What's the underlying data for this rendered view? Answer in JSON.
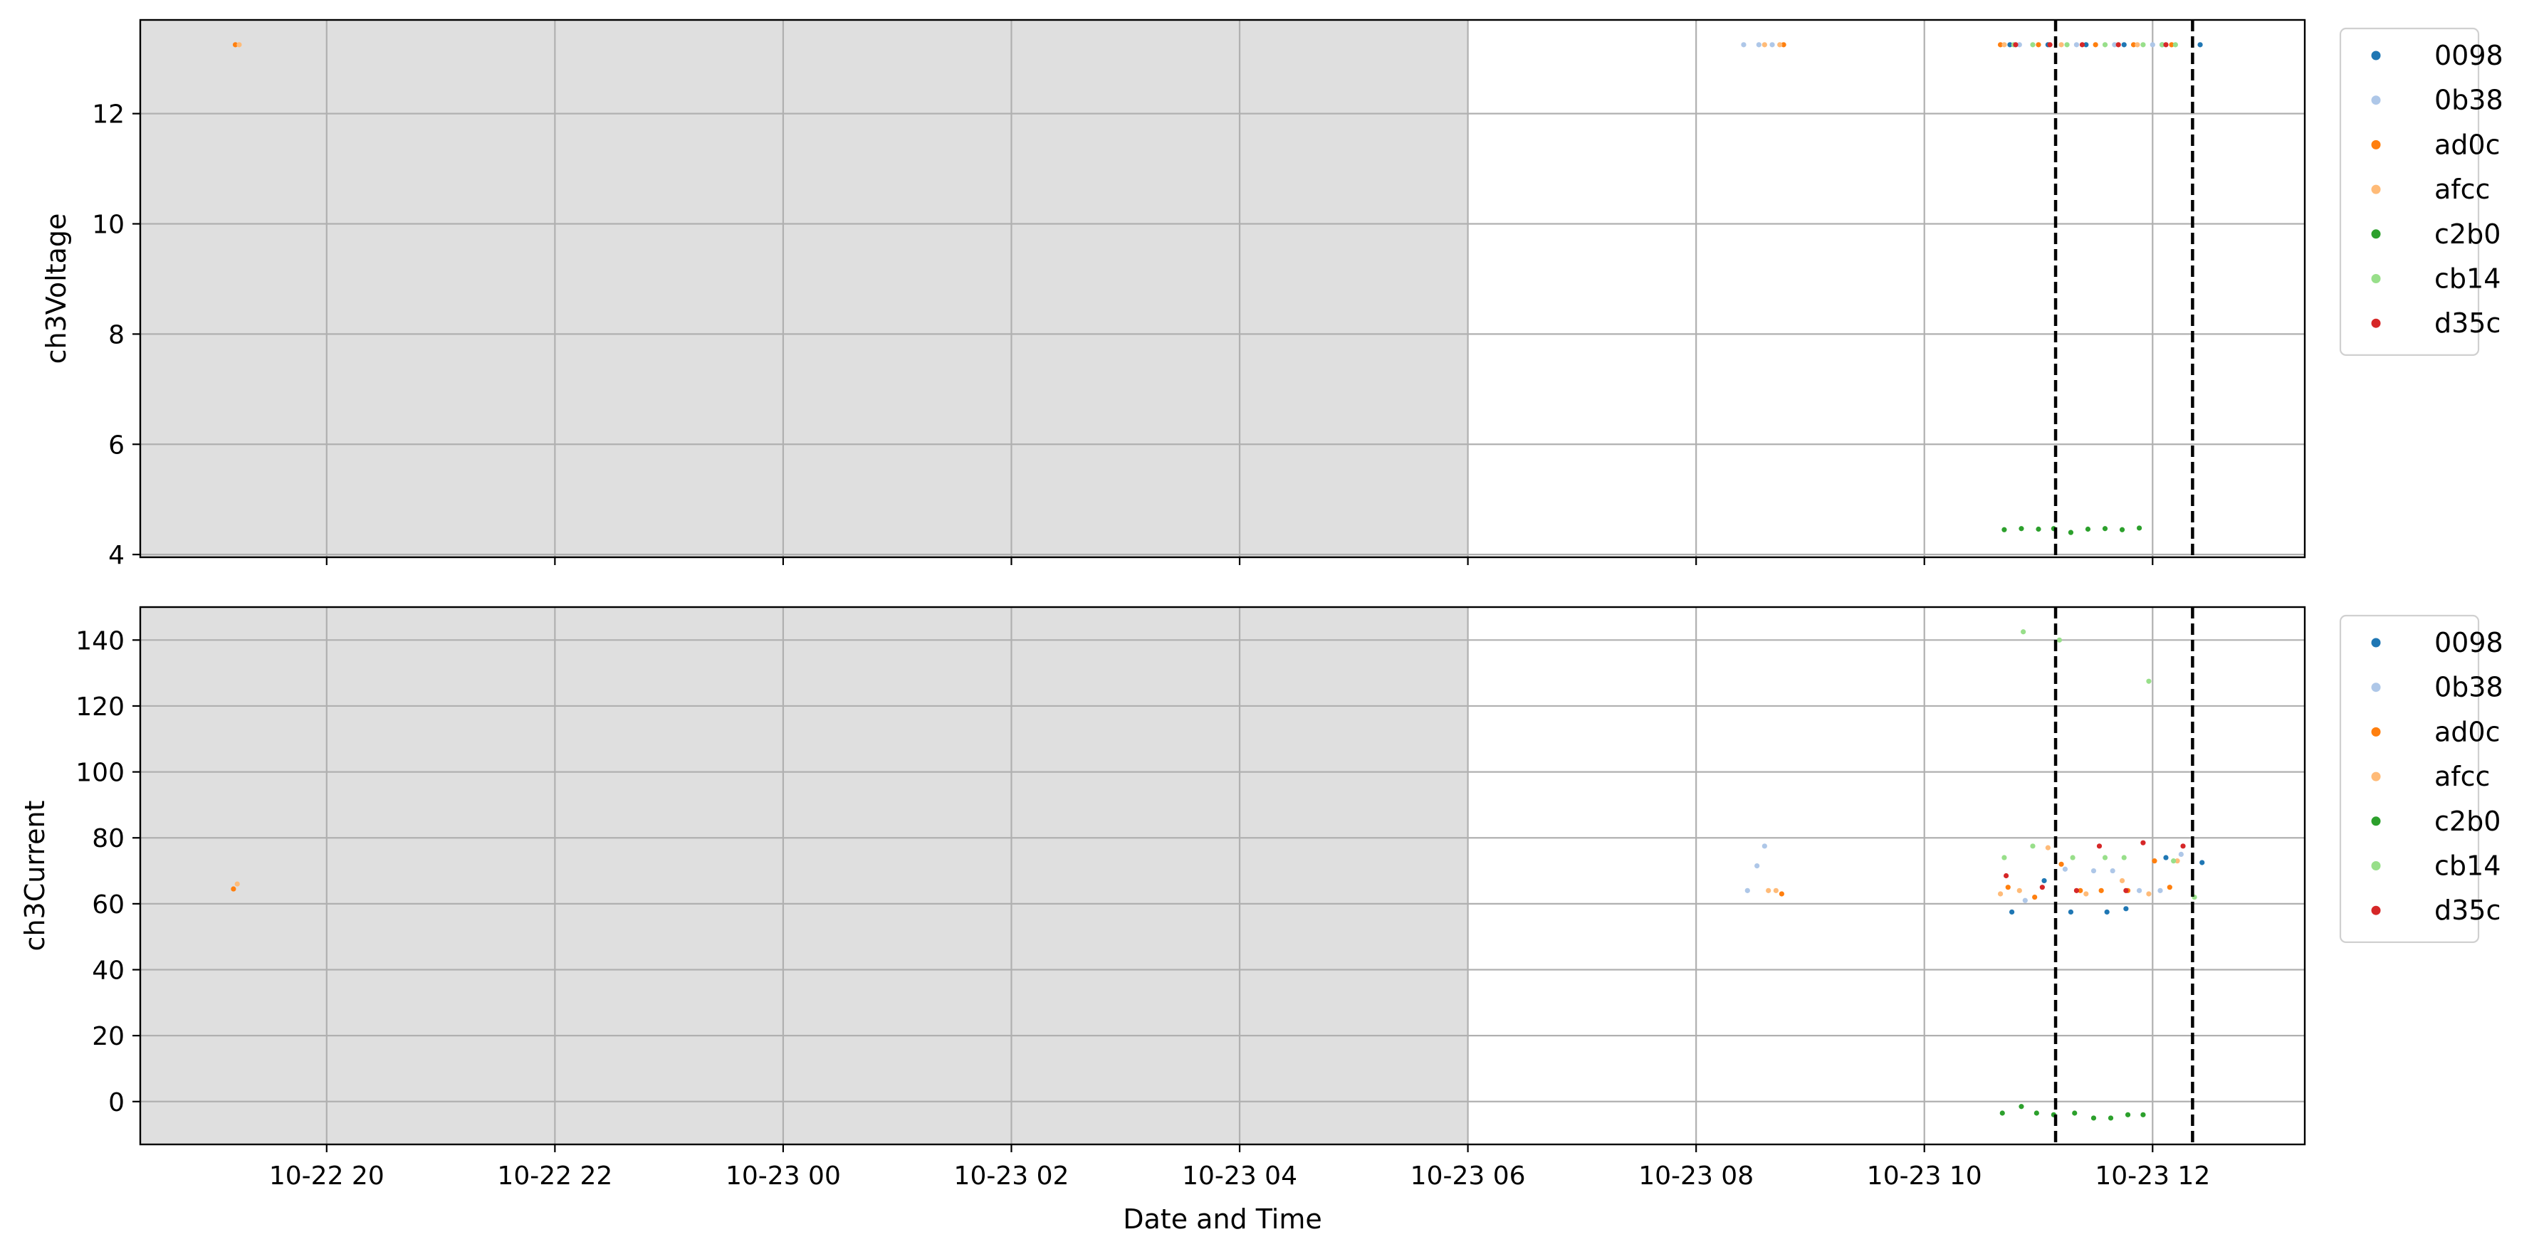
{
  "chart_data": {
    "type": "scatter",
    "x_unit": "datetime",
    "xlabel": "Date and Time",
    "x_ticks": [
      {
        "t": "2023-10-22T20:00",
        "label": "10-22 20"
      },
      {
        "t": "2023-10-22T22:00",
        "label": "10-22 22"
      },
      {
        "t": "2023-10-23T00:00",
        "label": "10-23 00"
      },
      {
        "t": "2023-10-23T02:00",
        "label": "10-23 02"
      },
      {
        "t": "2023-10-23T04:00",
        "label": "10-23 04"
      },
      {
        "t": "2023-10-23T06:00",
        "label": "10-23 06"
      },
      {
        "t": "2023-10-23T08:00",
        "label": "10-23 08"
      },
      {
        "t": "2023-10-23T10:00",
        "label": "10-23 10"
      },
      {
        "t": "2023-10-23T12:00",
        "label": "10-23 12"
      }
    ],
    "xlim": [
      "2023-10-22T18:22",
      "2023-10-23T13:20"
    ],
    "shaded_region": {
      "from": "2023-10-22T18:22",
      "to": "2023-10-23T06:00",
      "color": "#dfdfdf"
    },
    "vlines": [
      "2023-10-23T11:09",
      "2023-10-23T12:21"
    ],
    "grid": true,
    "legend_placement": "outside-right",
    "colors": {
      "0098": "#1f77b4",
      "0b38": "#aec7e8",
      "ad0c": "#ff7f0e",
      "afcc": "#ffbb78",
      "c2b0": "#2ca02c",
      "cb14": "#98df8a",
      "d35c": "#d62728"
    },
    "panels": [
      {
        "ylabel": "ch3Voltage",
        "ylim": [
          3.95,
          13.7
        ],
        "y_ticks": [
          4,
          6,
          8,
          10,
          12
        ],
        "legend": [
          "0098",
          "0b38",
          "ad0c",
          "afcc",
          "c2b0",
          "cb14",
          "d35c"
        ],
        "series": [
          {
            "name": "0098",
            "points": [
              [
                "2023-10-23T10:45",
                13.25
              ],
              [
                "2023-10-23T11:05",
                13.25
              ],
              [
                "2023-10-23T11:25",
                13.25
              ],
              [
                "2023-10-23T11:45",
                13.25
              ],
              [
                "2023-10-23T12:05",
                13.25
              ],
              [
                "2023-10-23T12:25",
                13.25
              ]
            ]
          },
          {
            "name": "0b38",
            "points": [
              [
                "2023-10-23T08:25",
                13.25
              ],
              [
                "2023-10-23T08:33",
                13.25
              ],
              [
                "2023-10-23T08:40",
                13.25
              ],
              [
                "2023-10-23T10:50",
                13.25
              ],
              [
                "2023-10-23T11:20",
                13.25
              ],
              [
                "2023-10-23T11:40",
                13.25
              ],
              [
                "2023-10-23T12:00",
                13.25
              ]
            ]
          },
          {
            "name": "ad0c",
            "points": [
              [
                "2023-10-22T19:12",
                13.25
              ],
              [
                "2023-10-23T08:46",
                13.25
              ],
              [
                "2023-10-23T10:40",
                13.25
              ],
              [
                "2023-10-23T11:00",
                13.25
              ],
              [
                "2023-10-23T11:30",
                13.25
              ],
              [
                "2023-10-23T11:50",
                13.25
              ],
              [
                "2023-10-23T12:10",
                13.25
              ]
            ]
          },
          {
            "name": "afcc",
            "points": [
              [
                "2023-10-22T19:14",
                13.25
              ],
              [
                "2023-10-23T08:36",
                13.25
              ],
              [
                "2023-10-23T08:44",
                13.25
              ],
              [
                "2023-10-23T10:42",
                13.25
              ],
              [
                "2023-10-23T11:12",
                13.25
              ],
              [
                "2023-10-23T11:52",
                13.25
              ]
            ]
          },
          {
            "name": "c2b0",
            "points": [
              [
                "2023-10-23T10:42",
                4.45
              ],
              [
                "2023-10-23T10:51",
                4.47
              ],
              [
                "2023-10-23T11:00",
                4.46
              ],
              [
                "2023-10-23T11:08",
                4.47
              ],
              [
                "2023-10-23T11:17",
                4.4
              ],
              [
                "2023-10-23T11:26",
                4.46
              ],
              [
                "2023-10-23T11:35",
                4.47
              ],
              [
                "2023-10-23T11:44",
                4.45
              ],
              [
                "2023-10-23T11:53",
                4.48
              ]
            ]
          },
          {
            "name": "cb14",
            "points": [
              [
                "2023-10-23T10:47",
                13.25
              ],
              [
                "2023-10-23T10:57",
                13.25
              ],
              [
                "2023-10-23T11:15",
                13.25
              ],
              [
                "2023-10-23T11:35",
                13.25
              ],
              [
                "2023-10-23T11:55",
                13.25
              ],
              [
                "2023-10-23T12:05",
                13.25
              ],
              [
                "2023-10-23T12:12",
                13.25
              ]
            ]
          },
          {
            "name": "d35c",
            "points": [
              [
                "2023-10-23T10:48",
                13.25
              ],
              [
                "2023-10-23T11:06",
                13.25
              ],
              [
                "2023-10-23T11:23",
                13.25
              ],
              [
                "2023-10-23T11:42",
                13.25
              ],
              [
                "2023-10-23T12:07",
                13.25
              ]
            ]
          }
        ]
      },
      {
        "ylabel": "ch3Current",
        "ylim": [
          -13,
          150
        ],
        "y_ticks": [
          0,
          20,
          40,
          60,
          80,
          100,
          120,
          140
        ],
        "legend": [
          "0098",
          "0b38",
          "ad0c",
          "afcc",
          "c2b0",
          "cb14",
          "d35c"
        ],
        "series": [
          {
            "name": "0098",
            "points": [
              [
                "2023-10-23T10:46",
                57.5
              ],
              [
                "2023-10-23T11:03",
                67
              ],
              [
                "2023-10-23T11:17",
                57.5
              ],
              [
                "2023-10-23T11:36",
                57.5
              ],
              [
                "2023-10-23T11:46",
                58.5
              ],
              [
                "2023-10-23T12:07",
                74
              ],
              [
                "2023-10-23T12:26",
                72.5
              ]
            ]
          },
          {
            "name": "0b38",
            "points": [
              [
                "2023-10-23T08:27",
                64
              ],
              [
                "2023-10-23T08:32",
                71.5
              ],
              [
                "2023-10-23T08:36",
                77.5
              ],
              [
                "2023-10-23T10:53",
                61
              ],
              [
                "2023-10-23T11:14",
                70.5
              ],
              [
                "2023-10-23T11:29",
                70
              ],
              [
                "2023-10-23T11:39",
                70
              ],
              [
                "2023-10-23T11:53",
                64
              ],
              [
                "2023-10-23T12:04",
                64
              ],
              [
                "2023-10-23T12:15",
                75
              ]
            ]
          },
          {
            "name": "ad0c",
            "points": [
              [
                "2023-10-22T19:11",
                64.5
              ],
              [
                "2023-10-23T08:45",
                63
              ],
              [
                "2023-10-23T10:44",
                65
              ],
              [
                "2023-10-23T10:58",
                62
              ],
              [
                "2023-10-23T11:12",
                72
              ],
              [
                "2023-10-23T11:22",
                64
              ],
              [
                "2023-10-23T11:33",
                64
              ],
              [
                "2023-10-23T11:47",
                64
              ],
              [
                "2023-10-23T12:01",
                73
              ],
              [
                "2023-10-23T12:09",
                65
              ]
            ]
          },
          {
            "name": "afcc",
            "points": [
              [
                "2023-10-22T19:13",
                66
              ],
              [
                "2023-10-23T08:38",
                64
              ],
              [
                "2023-10-23T08:42",
                64
              ],
              [
                "2023-10-23T10:40",
                63
              ],
              [
                "2023-10-23T10:50",
                64
              ],
              [
                "2023-10-23T11:05",
                77
              ],
              [
                "2023-10-23T11:25",
                63
              ],
              [
                "2023-10-23T11:44",
                67
              ],
              [
                "2023-10-23T11:58",
                63
              ],
              [
                "2023-10-23T12:13",
                73
              ]
            ]
          },
          {
            "name": "c2b0",
            "points": [
              [
                "2023-10-23T10:41",
                -3.5
              ],
              [
                "2023-10-23T10:51",
                -1.5
              ],
              [
                "2023-10-23T10:59",
                -3.5
              ],
              [
                "2023-10-23T11:08",
                -4
              ],
              [
                "2023-10-23T11:19",
                -3.5
              ],
              [
                "2023-10-23T11:29",
                -5
              ],
              [
                "2023-10-23T11:38",
                -5
              ],
              [
                "2023-10-23T11:47",
                -4
              ],
              [
                "2023-10-23T11:55",
                -4
              ]
            ]
          },
          {
            "name": "cb14",
            "points": [
              [
                "2023-10-23T10:42",
                74
              ],
              [
                "2023-10-23T10:52",
                142.5
              ],
              [
                "2023-10-23T10:57",
                77.5
              ],
              [
                "2023-10-23T11:11",
                140
              ],
              [
                "2023-10-23T11:18",
                74
              ],
              [
                "2023-10-23T11:35",
                74
              ],
              [
                "2023-10-23T11:45",
                74
              ],
              [
                "2023-10-23T11:58",
                127.5
              ],
              [
                "2023-10-23T12:11",
                73
              ],
              [
                "2023-10-23T12:22",
                62
              ]
            ]
          },
          {
            "name": "d35c",
            "points": [
              [
                "2023-10-23T10:43",
                68.5
              ],
              [
                "2023-10-23T11:02",
                65
              ],
              [
                "2023-10-23T11:20",
                64
              ],
              [
                "2023-10-23T11:32",
                77.5
              ],
              [
                "2023-10-23T11:46",
                64
              ],
              [
                "2023-10-23T11:55",
                78.5
              ],
              [
                "2023-10-23T12:16",
                77.5
              ]
            ]
          }
        ]
      }
    ]
  }
}
